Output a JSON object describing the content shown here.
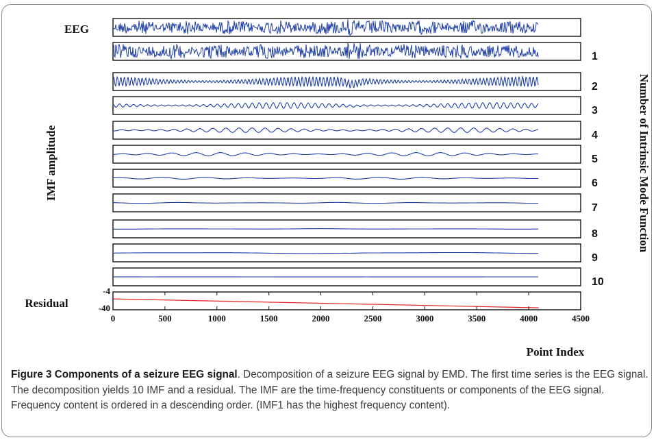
{
  "chart_data": {
    "type": "line",
    "title": "",
    "top_label": "EEG",
    "ylabel": "IMF amplitude",
    "right_label": "Number of Intrinsic Mode Function",
    "xlabel": "Point Index",
    "residual_label": "Residual",
    "residual_yticks": [
      "-4",
      "-40"
    ],
    "xlim": [
      0,
      4500
    ],
    "xticks": [
      "0",
      "500",
      "1000",
      "1500",
      "2000",
      "2500",
      "3000",
      "3500",
      "4000",
      "4500"
    ],
    "signal_length": 4097,
    "series": [
      {
        "name": "EEG",
        "label": "",
        "color": "#1f3fa8",
        "amplitude": 0.85,
        "freq": 1.0
      },
      {
        "name": "IMF1",
        "label": "1",
        "color": "#1f3fa8",
        "amplitude": 0.9,
        "freq": 1.0
      },
      {
        "name": "IMF2",
        "label": "2",
        "color": "#1f3fa8",
        "amplitude": 0.6,
        "freq": 0.55
      },
      {
        "name": "IMF3",
        "label": "3",
        "color": "#1f3fa8",
        "amplitude": 0.35,
        "freq": 0.28
      },
      {
        "name": "IMF4",
        "label": "4",
        "color": "#1f3fa8",
        "amplitude": 0.28,
        "freq": 0.15
      },
      {
        "name": "IMF5",
        "label": "5",
        "color": "#1f3fa8",
        "amplitude": 0.2,
        "freq": 0.08
      },
      {
        "name": "IMF6",
        "label": "6",
        "color": "#1f3fa8",
        "amplitude": 0.12,
        "freq": 0.045
      },
      {
        "name": "IMF7",
        "label": "7",
        "color": "#1f3fa8",
        "amplitude": 0.06,
        "freq": 0.025
      },
      {
        "name": "IMF8",
        "label": "8",
        "color": "#1f3fa8",
        "amplitude": 0.03,
        "freq": 0.015
      },
      {
        "name": "IMF9",
        "label": "9",
        "color": "#1f3fa8",
        "amplitude": 0.08,
        "freq": 0.008
      },
      {
        "name": "IMF10",
        "label": "10",
        "color": "#1f3fa8",
        "amplitude": 0.02,
        "freq": 0.004
      }
    ],
    "residual": {
      "name": "Residual",
      "color": "#e02020",
      "x": [
        0,
        4097
      ],
      "y": [
        -18,
        -36
      ]
    },
    "residual_ylim": [
      -4,
      -40
    ]
  },
  "caption": {
    "title": "Figure 3 Components of a seizure EEG signal",
    "text": ". Decomposition of a seizure EEG signal by EMD. The first time series is the EEG signal. The decomposition yields 10 IMF and a residual. The IMF are the time-frequency constituents or components of the EEG signal. Frequency content is ordered in a descending order. (IMF1 has the highest frequency content)."
  }
}
